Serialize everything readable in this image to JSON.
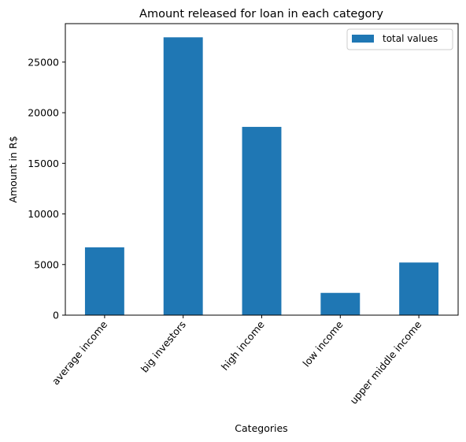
{
  "chart_data": {
    "type": "bar",
    "title": "Amount released for loan in each category",
    "xlabel": "Categories",
    "ylabel": "Amount in R$",
    "categories": [
      "average income",
      "big investors",
      "high income",
      "low income",
      "upper middle income"
    ],
    "series": [
      {
        "name": "total values",
        "values": [
          6700,
          27450,
          18600,
          2200,
          5200
        ],
        "color": "#1f77b4"
      }
    ],
    "yticks": [
      0,
      5000,
      10000,
      15000,
      20000,
      25000
    ],
    "ylim": [
      0,
      28800
    ],
    "grid": false,
    "legend_position": "top-right"
  }
}
